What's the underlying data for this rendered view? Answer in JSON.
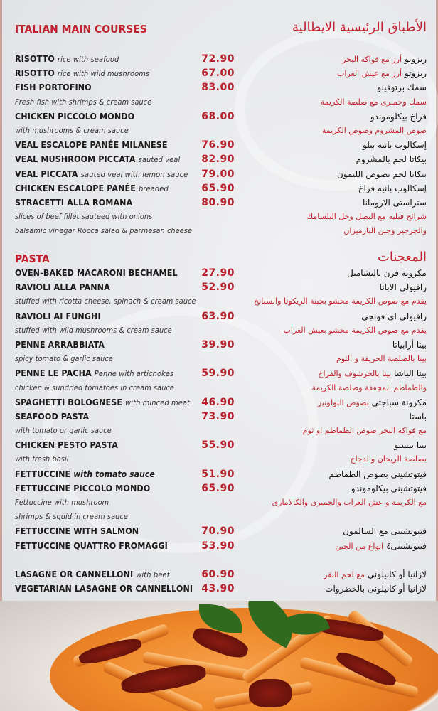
{
  "sections": [
    {
      "title_en": "ITALIAN MAIN COURSES",
      "title_ar": "الأطباق الرئيسية الايطالية",
      "rows": [
        {
          "name": "RISOTTO",
          "desc": "rice with seafood",
          "price": "72.90",
          "ar": "ريزوتو",
          "ar_desc": "أرز مع فواكه البحر"
        },
        {
          "name": "RISOTTO",
          "desc": "rice with wild mushrooms",
          "price": "67.00",
          "ar": "ريزوتو",
          "ar_desc": "أرز مع عيش الغراب"
        },
        {
          "name": "FISH PORTOFINO",
          "desc": "",
          "price": "83.00",
          "ar": "سمك برتوفينو",
          "ar_desc": ""
        },
        {
          "type": "desc",
          "text": "Fresh fish with shrimps & cream sauce",
          "ar": "سمك وجمبرى مع صلصة الكريمة"
        },
        {
          "name": "CHICKEN PICCOLO MONDO",
          "desc": "",
          "price": "68.00",
          "ar": "فراخ بيكلوموندو",
          "ar_desc": ""
        },
        {
          "type": "desc",
          "text": "with mushrooms & cream sauce",
          "ar": "صوص المشروم وصوص الكريمة"
        },
        {
          "name": "VEAL ESCALOPE PANÉE MILANESE",
          "desc": "",
          "price": "76.90",
          "ar": "إسكالوب بانيه بتلو",
          "ar_desc": ""
        },
        {
          "name": "VEAL MUSHROOM PICCATA",
          "desc": "sauted veal",
          "price": "82.90",
          "ar": "بيكاتا لحم بالمشروم",
          "ar_desc": ""
        },
        {
          "name": "VEAL PICCATA",
          "desc": "sauted veal with lemon sauce",
          "price": "79.00",
          "ar": "بيكاتا لحم بصوص الليمون",
          "ar_desc": ""
        },
        {
          "name": "CHICKEN ESCALOPE PANÉE",
          "desc": "breaded",
          "price": "65.90",
          "ar": "إسكالوب بانيه فراخ",
          "ar_desc": ""
        },
        {
          "name": "STRACETTI ALLA ROMANA",
          "desc": "",
          "price": "80.90",
          "ar": "ستراستى الارومانا",
          "ar_desc": ""
        },
        {
          "type": "desc",
          "text": "slices of beef fillet sauteed with onions",
          "ar": "شرائح فيليه مع البصل وخل البلسامك"
        },
        {
          "type": "desc",
          "text": "balsamic vinegar Rocca salad & parmesan cheese",
          "ar": "والجرجير وجبن البارميزان"
        }
      ]
    },
    {
      "title_en": "PASTA",
      "title_ar": "المعجنات",
      "rows": [
        {
          "name": "OVEN-BAKED MACARONI BECHAMEL",
          "desc": "",
          "price": "27.90",
          "ar": "مكرونة فرن بالبشاميل",
          "ar_desc": ""
        },
        {
          "name": "RAVIOLI ALLA PANNA",
          "desc": "",
          "price": "52.90",
          "ar": "رافيولى الابانا",
          "ar_desc": ""
        },
        {
          "type": "desc",
          "text": "stuffed with ricotta cheese, spinach & cream sauce",
          "ar": "يقدم مع صوص الكريمة محشو بجبنة الريكوتا والسبانخ"
        },
        {
          "name": "RAVIOLI AI FUNGHI",
          "desc": "",
          "price": "63.90",
          "ar": "رافيولى اى فونجى",
          "ar_desc": ""
        },
        {
          "type": "desc",
          "text": "stuffed with wild mushrooms & cream sauce",
          "ar": "يقدم مع صوص الكريمة محشو بعيش الغراب"
        },
        {
          "name": "PENNE ARRABBIATA",
          "desc": "",
          "price": "39.90",
          "ar": "بينا أرابياتا",
          "ar_desc": ""
        },
        {
          "type": "desc",
          "text": "spicy tomato & garlic sauce",
          "ar": "بينا بالصلصة الحريفة و الثوم"
        },
        {
          "name": "PENNE LE PACHA",
          "desc": "Penne with artichokes",
          "price": "59.90",
          "ar": "بينا الباشا",
          "ar_desc": "بينا بالخرشوف والفراخ"
        },
        {
          "type": "desc",
          "text": "chicken & sundried tomatoes in cream sauce",
          "ar": "والطماطم المجففة وصلصة الكريمة"
        },
        {
          "name": "SPAGHETTI BOLOGNESE",
          "desc": "with minced meat",
          "price": "46.90",
          "ar": "مكرونة سباجتى",
          "ar_desc": "بصوص البولونيز"
        },
        {
          "name": "SEAFOOD PASTA",
          "desc": "",
          "price": "73.90",
          "ar": "باستا",
          "ar_desc": ""
        },
        {
          "type": "desc",
          "text": "with tomato or garlic sauce",
          "ar": "مع فواكه البحر  صوص الطماطم او ثوم"
        },
        {
          "name": "CHICKEN PESTO PASTA",
          "desc": "",
          "price": "55.90",
          "ar": "بينا بيستو",
          "ar_desc": ""
        },
        {
          "type": "desc",
          "text": "with fresh basil",
          "ar": "بصلصة الريحان والدجاج"
        },
        {
          "name": "FETTUCCINE",
          "desc": "with tomato sauce",
          "desc_bold": true,
          "price": "51.90",
          "ar": "فيتوتشينى بصوص الطماطم",
          "ar_desc": ""
        },
        {
          "name": "FETTUCCINE PICCOLO MONDO",
          "desc": "",
          "price": "65.90",
          "ar": "فيتوتشينى بيكلوموندو",
          "ar_desc": ""
        },
        {
          "type": "desc",
          "text": "Fettuccine with mushroom",
          "ar": "مع الكريمة و عش الغراب والجمبرى والكالامارى"
        },
        {
          "type": "desc",
          "text": " shrimps & squid in cream sauce",
          "ar": ""
        },
        {
          "name": "FETTUCCINE WITH SALMON",
          "desc": "",
          "price": "70.90",
          "ar": "فيتوتشينى مع السالمون",
          "ar_desc": ""
        },
        {
          "name": "FETTUCCINE QUATTRO FROMAGGI",
          "desc": "",
          "price": "53.90",
          "ar": "فيتوتشينى٤",
          "ar_desc": "انواع من الجبن"
        },
        {
          "type": "blank"
        },
        {
          "name": "LASAGNE OR CANNELLONI",
          "desc": "with beef",
          "price": "60.90",
          "ar": "لازانيا  أو كانيلونى",
          "ar_desc": "مع لحم البقر"
        },
        {
          "name": "VEGETARIAN LASAGNE OR CANNELLONI",
          "desc": "",
          "price": "43.90",
          "ar": "لازانيا أو كانيلونى بالخضروات",
          "ar_desc": ""
        }
      ]
    }
  ],
  "colors": {
    "accent": "#c0232f",
    "price": "#b8202b",
    "text": "#1a1a1a",
    "background": "#e9eaec"
  }
}
